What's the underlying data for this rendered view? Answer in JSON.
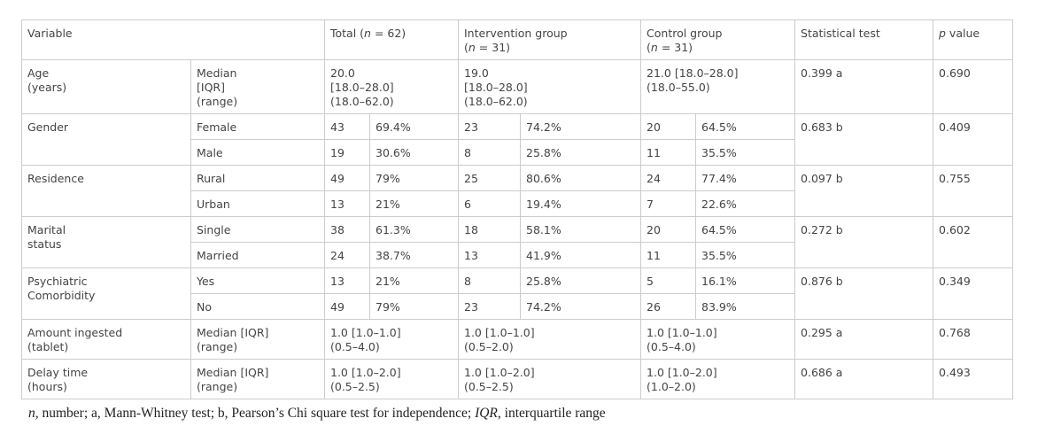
{
  "header": [
    [
      [
        {
          "text": "Variable"
        }
      ]
    ],
    [
      [
        {
          "text": "Total ("
        },
        {
          "text": "n",
          "italic": true
        },
        {
          "text": " = 62)"
        }
      ]
    ],
    [
      [
        {
          "text": "Intervention group"
        }
      ],
      [
        {
          "text": "("
        },
        {
          "text": "n",
          "italic": true
        },
        {
          "text": " = 31)"
        }
      ]
    ],
    [
      [
        {
          "text": "Control group"
        }
      ],
      [
        {
          "text": "("
        },
        {
          "text": "n",
          "italic": true
        },
        {
          "text": " = 31)"
        }
      ]
    ],
    [
      [
        {
          "text": "Statistical test"
        }
      ]
    ],
    [
      [
        {
          "text": "p",
          "italic": true
        },
        {
          "text": " value"
        }
      ]
    ]
  ],
  "groups": [
    {
      "label": [
        "Age",
        "(years)"
      ],
      "test": "0.399 a",
      "p": "0.690",
      "rows": [
        {
          "sub": [
            "Median",
            "[IQR]",
            "(range)"
          ],
          "cells": [
            [
              "20.0",
              "[18.0–28.0]",
              "(18.0–62.0)"
            ],
            [
              "19.0",
              "[18.0–28.0]",
              "(18.0–62.0)"
            ],
            [
              "21.0 [18.0–28.0]",
              "(18.0–55.0)"
            ]
          ]
        }
      ]
    },
    {
      "label": [
        "Gender"
      ],
      "test": "0.683 b",
      "p": "0.409",
      "rows": [
        {
          "sub": [
            "Female"
          ],
          "cells": [
            "43",
            "69.4%",
            "23",
            "74.2%",
            "20",
            "64.5%"
          ]
        },
        {
          "sub": [
            "Male"
          ],
          "cells": [
            "19",
            "30.6%",
            "8",
            "25.8%",
            "11",
            "35.5%"
          ]
        }
      ]
    },
    {
      "label": [
        "Residence"
      ],
      "test": "0.097 b",
      "p": "0.755",
      "rows": [
        {
          "sub": [
            "Rural"
          ],
          "cells": [
            "49",
            "79%",
            "25",
            "80.6%",
            "24",
            "77.4%"
          ]
        },
        {
          "sub": [
            "Urban"
          ],
          "cells": [
            "13",
            "21%",
            "6",
            "19.4%",
            "7",
            "22.6%"
          ]
        }
      ]
    },
    {
      "label": [
        "Marital",
        "status"
      ],
      "test": "0.272 b",
      "p": "0.602",
      "rows": [
        {
          "sub": [
            "Single"
          ],
          "cells": [
            "38",
            "61.3%",
            "18",
            "58.1%",
            "20",
            "64.5%"
          ]
        },
        {
          "sub": [
            "Married"
          ],
          "cells": [
            "24",
            "38.7%",
            "13",
            "41.9%",
            "11",
            "35.5%"
          ]
        }
      ]
    },
    {
      "label": [
        "Psychiatric",
        "Comorbidity"
      ],
      "test": "0.876 b",
      "p": "0.349",
      "rows": [
        {
          "sub": [
            "Yes"
          ],
          "cells": [
            "13",
            "21%",
            "8",
            "25.8%",
            "5",
            "16.1%"
          ]
        },
        {
          "sub": [
            "No"
          ],
          "cells": [
            "49",
            "79%",
            "23",
            "74.2%",
            "26",
            "83.9%"
          ]
        }
      ]
    },
    {
      "label": [
        "Amount ingested",
        "(tablet)"
      ],
      "test": "0.295 a",
      "p": "0.768",
      "rows": [
        {
          "sub": [
            "Median [IQR]",
            "(range)"
          ],
          "cells": [
            [
              "1.0 [1.0–1.0]",
              "(0.5–4.0)"
            ],
            [
              "1.0 [1.0–1.0]",
              "(0.5–2.0)"
            ],
            [
              "1.0 [1.0–1.0]",
              "(0.5–4.0)"
            ]
          ]
        }
      ]
    },
    {
      "label": [
        "Delay time",
        "(hours)"
      ],
      "test": "0.686 a",
      "p": "0.493",
      "rows": [
        {
          "sub": [
            "Median [IQR]",
            "(range)"
          ],
          "cells": [
            [
              "1.0 [1.0–2.0]",
              "(0.5–2.5)"
            ],
            [
              "1.0 [1.0–2.0]",
              "(0.5–2.5)"
            ],
            [
              "1.0 [1.0–2.0]",
              "(1.0–2.0)"
            ]
          ]
        }
      ]
    }
  ],
  "footnote": [
    {
      "text": "n",
      "italic": true
    },
    {
      "text": ", number; a, Mann-Whitney test; b, Pearson’s Chi square test for independence; "
    },
    {
      "text": "IQR",
      "italic": true
    },
    {
      "text": ", interquartile range"
    }
  ]
}
